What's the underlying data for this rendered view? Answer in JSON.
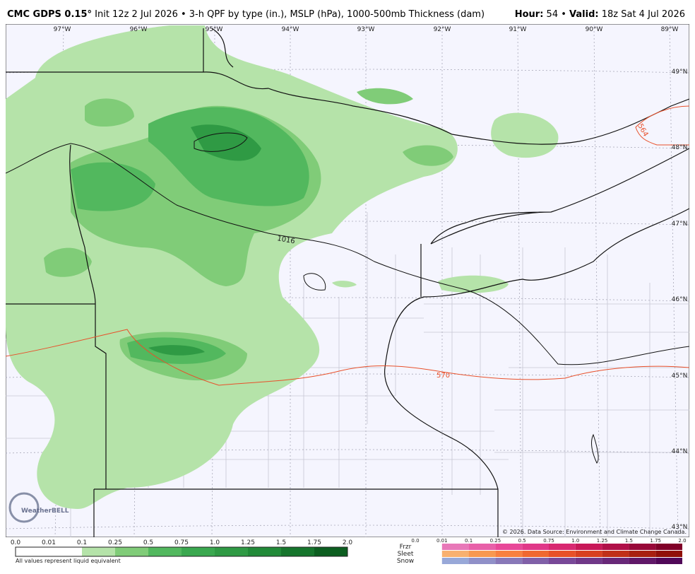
{
  "header": {
    "model": "CMC GDPS 0.15°",
    "description": "Init 12z 2 Jul 2026 • 3-h QPF by type (in.), MSLP (hPa), 1000-500mb Thickness (dam)",
    "hour_label": "Hour:",
    "hour": "54",
    "separator": "•",
    "valid_label": "Valid:",
    "valid": "18z Sat 4 Jul 2026"
  },
  "map": {
    "longitudes": [
      "97°W",
      "96°W",
      "95°W",
      "94°W",
      "93°W",
      "92°W",
      "91°W",
      "90°W",
      "89°W"
    ],
    "latitudes": [
      "49°N",
      "48°N",
      "47°N",
      "46°N",
      "45°N",
      "44°N",
      "43°N"
    ],
    "contour_labels": [
      "1016",
      "570",
      "564"
    ],
    "copyright": "© 2026. Data Source: Environment and Climate Change Canada.",
    "logo": "WeatherBELL"
  },
  "legend": {
    "rain_ticks": [
      "0.0",
      "0.01",
      "0.1",
      "0.25",
      "0.5",
      "0.75",
      "1.0",
      "1.25",
      "1.5",
      "1.75",
      "2.0"
    ],
    "note": "All values represent liquid equivalent",
    "types": [
      "Frzr",
      "Sleet",
      "Snow"
    ],
    "type_ticks": [
      "0.0",
      "0.01",
      "0.1",
      "0.25",
      "0.5",
      "0.75",
      "1.0",
      "1.25",
      "1.5",
      "1.75",
      "2.0"
    ]
  }
}
